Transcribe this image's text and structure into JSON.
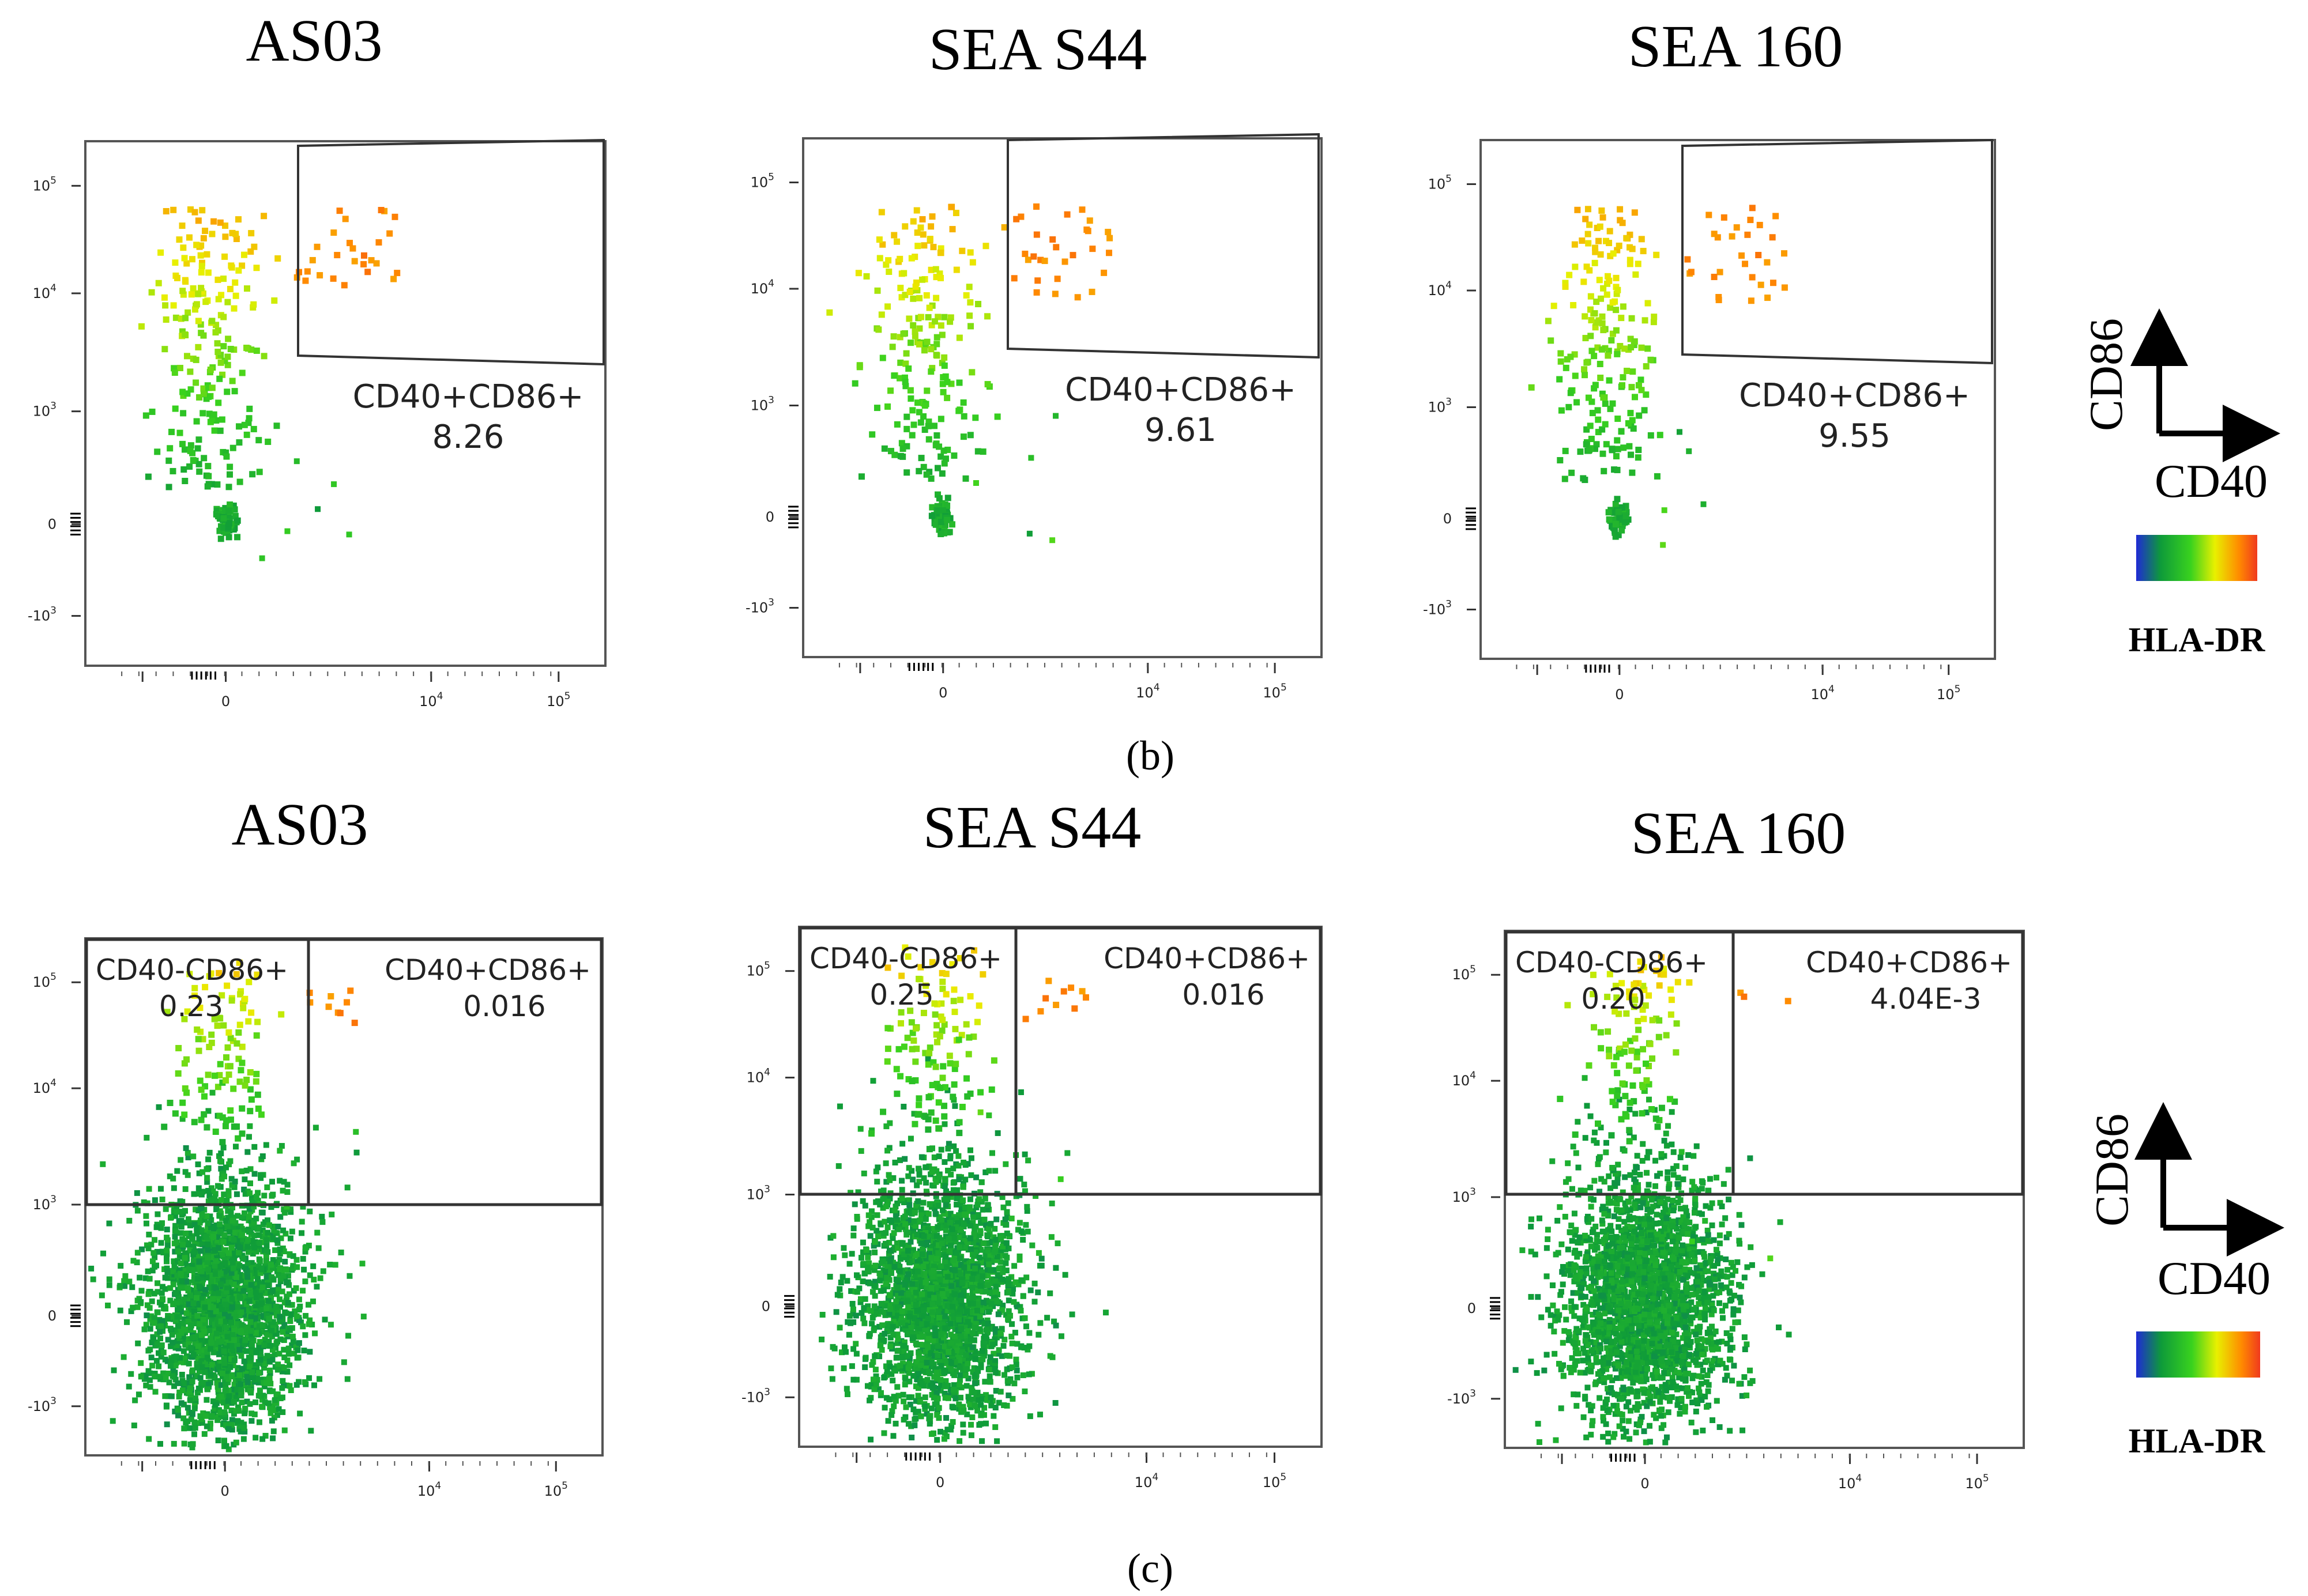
{
  "figure": {
    "panel_b_label": "(b)",
    "panel_c_label": "(c)",
    "legend": {
      "y_axis_label": "CD86",
      "x_axis_label": "CD40",
      "colorbar_label": "HLA-DR",
      "colorbar_colors": [
        "#1f2ad6",
        "#0e9a3a",
        "#39d21e",
        "#e8f000",
        "#ff8a00",
        "#f03a1e"
      ]
    }
  },
  "chart_data": [
    {
      "type": "scatter",
      "panel": "b",
      "title": "AS03",
      "xlabel": "CD40",
      "ylabel": "CD86",
      "color_by": "HLA-DR",
      "x_ticks": [
        "0",
        "10^4",
        "10^5"
      ],
      "y_ticks": [
        "-10^3",
        "0",
        "10^3",
        "10^4",
        "10^5"
      ],
      "gates": [
        {
          "name": "CD40+CD86+",
          "value": "8.26"
        }
      ],
      "seed": 11,
      "low": [
        70,
        0.08,
        0.15
      ],
      "stream": [
        220,
        0.08,
        0.5,
        0.55,
        0.78
      ],
      "pos": 28,
      "sparse": 6
    },
    {
      "type": "scatter",
      "panel": "b",
      "title": "SEA S44",
      "xlabel": "CD40",
      "ylabel": "CD86",
      "color_by": "HLA-DR",
      "x_ticks": [
        "0",
        "10^4",
        "10^5"
      ],
      "y_ticks": [
        "-10^3",
        "0",
        "10^3",
        "10^4",
        "10^5"
      ],
      "gates": [
        {
          "name": "CD40+CD86+",
          "value": "9.61"
        }
      ],
      "seed": 23,
      "low": [
        60,
        0.08,
        0.15
      ],
      "stream": [
        210,
        0.08,
        0.5,
        0.55,
        0.78
      ],
      "pos": 30,
      "sparse": 5
    },
    {
      "type": "scatter",
      "panel": "b",
      "title": "SEA 160",
      "xlabel": "CD40",
      "ylabel": "CD86",
      "color_by": "HLA-DR",
      "x_ticks": [
        "0",
        "10^4",
        "10^5"
      ],
      "y_ticks": [
        "-10^3",
        "0",
        "10^3",
        "10^4",
        "10^5"
      ],
      "gates": [
        {
          "name": "CD40+CD86+",
          "value": "9.55"
        }
      ],
      "seed": 37,
      "low": [
        55,
        0.07,
        0.15
      ],
      "stream": [
        210,
        0.07,
        0.5,
        0.55,
        0.78
      ],
      "pos": 30,
      "sparse": 5
    },
    {
      "type": "scatter",
      "panel": "c",
      "title": "AS03",
      "xlabel": "CD40",
      "ylabel": "CD86",
      "color_by": "HLA-DR",
      "x_ticks": [
        "0",
        "10^4",
        "10^5"
      ],
      "y_ticks": [
        "-10^3",
        "0",
        "10^3",
        "10^4",
        "10^5"
      ],
      "gates": [
        {
          "name": "CD40-CD86+",
          "value": "0.23"
        },
        {
          "name": "CD40+CD86+",
          "value": "0.016"
        }
      ],
      "seed": 51,
      "low": [
        2400,
        0.35,
        0.45
      ],
      "stream": [
        110,
        0.05,
        0.62,
        0.72,
        0.82
      ],
      "pos": 9,
      "sparse": 6
    },
    {
      "type": "scatter",
      "panel": "c",
      "title": "SEA S44",
      "xlabel": "CD40",
      "ylabel": "CD86",
      "color_by": "HLA-DR",
      "x_ticks": [
        "0",
        "10^4",
        "10^5"
      ],
      "y_ticks": [
        "-10^3",
        "0",
        "10^3",
        "10^4",
        "10^5"
      ],
      "gates": [
        {
          "name": "CD40-CD86+",
          "value": "0.25"
        },
        {
          "name": "CD40+CD86+",
          "value": "0.016"
        }
      ],
      "seed": 63,
      "low": [
        2400,
        0.35,
        0.45
      ],
      "stream": [
        120,
        0.05,
        0.62,
        0.72,
        0.82
      ],
      "pos": 10,
      "sparse": 7
    },
    {
      "type": "scatter",
      "panel": "c",
      "title": "SEA 160",
      "xlabel": "CD40",
      "ylabel": "CD86",
      "color_by": "HLA-DR",
      "x_ticks": [
        "0",
        "10^4",
        "10^5"
      ],
      "y_ticks": [
        "-10^3",
        "0",
        "10^3",
        "10^4",
        "10^5"
      ],
      "gates": [
        {
          "name": "CD40-CD86+",
          "value": "0.20"
        },
        {
          "name": "CD40+CD86+",
          "value": "4.04E-3"
        }
      ],
      "seed": 79,
      "low": [
        2400,
        0.35,
        0.45
      ],
      "stream": [
        110,
        0.05,
        0.62,
        0.72,
        0.82
      ],
      "pos": 3,
      "sparse": 6
    }
  ]
}
